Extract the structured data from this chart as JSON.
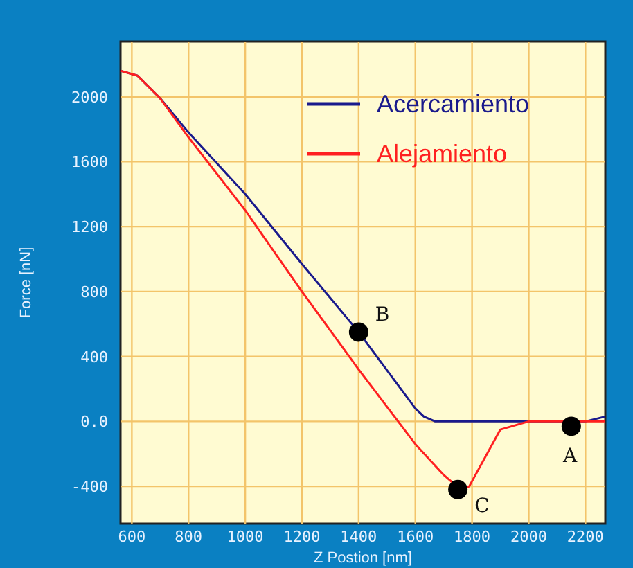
{
  "chart_data": {
    "type": "line",
    "xlabel": "Z Postion [nm]",
    "ylabel": "Force [nN]",
    "xlim": [
      560,
      2270
    ],
    "ylim": [
      -630,
      2340
    ],
    "xticks": [
      600,
      800,
      1000,
      1200,
      1400,
      1600,
      1800,
      2000,
      2200
    ],
    "yticks": [
      -400,
      {
        "value": 0,
        "label": "0.0"
      },
      400,
      800,
      1200,
      1600,
      2000
    ],
    "grid": true,
    "legend": "top right",
    "line_style": "solid",
    "series": [
      {
        "name": "Acercamiento",
        "color": "#1a1a8c",
        "x": [
          560,
          620,
          700,
          800,
          1000,
          1200,
          1400,
          1600,
          1630,
          1670,
          2000,
          2200,
          2270
        ],
        "values": [
          2160,
          2130,
          1990,
          1780,
          1400,
          970,
          550,
          80,
          30,
          0,
          0,
          0,
          30
        ]
      },
      {
        "name": "Alejamiento",
        "color": "#ff2020",
        "x": [
          560,
          620,
          700,
          800,
          1000,
          1200,
          1400,
          1600,
          1700,
          1760,
          1790,
          1900,
          2000,
          2270
        ],
        "values": [
          2160,
          2130,
          1990,
          1750,
          1300,
          800,
          320,
          -140,
          -330,
          -420,
          -400,
          -50,
          0,
          0
        ]
      },
      {
        "type": "scatter",
        "color": "#000000",
        "marker": "circle",
        "x": [
          2150,
          1400,
          1750
        ],
        "values": [
          -30,
          550,
          -420
        ]
      }
    ],
    "annotations": [
      {
        "text": "A",
        "x": 2150,
        "y": -30
      },
      {
        "text": "B",
        "x": 1400,
        "y": 550
      },
      {
        "text": "C",
        "x": 1750,
        "y": -420
      }
    ]
  }
}
